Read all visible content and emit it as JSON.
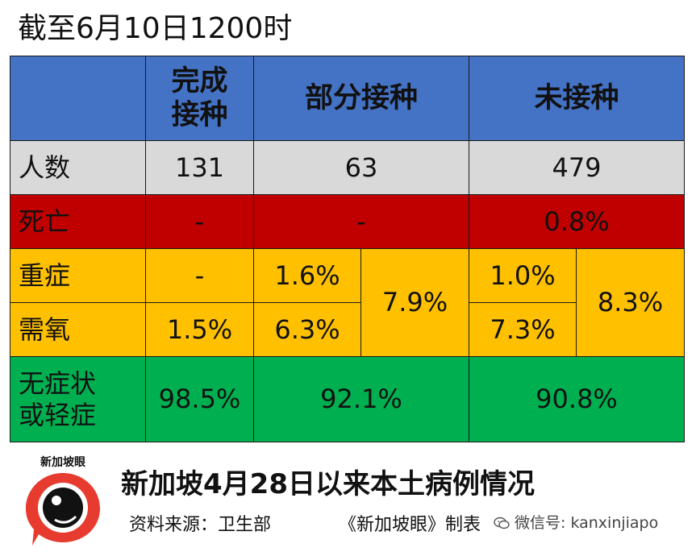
{
  "title": "截至6月10日1200时",
  "table": {
    "headers": [
      "",
      "完成\n接种",
      "部分接种",
      "未接种"
    ],
    "rows": {
      "count": {
        "label": "人数",
        "full": "131",
        "partial": "63",
        "none": "479"
      },
      "death": {
        "label": "死亡",
        "full": "-",
        "partial": "-",
        "none": "0.8%"
      },
      "severe": {
        "label": "重症",
        "full": "-",
        "partial": "1.6%",
        "none": "1.0%"
      },
      "oxygen": {
        "label": "需氧",
        "full": "1.5%",
        "partial": "6.3%",
        "none": "7.3%"
      },
      "merged": {
        "partial": "7.9%",
        "none": "8.3%"
      },
      "mild": {
        "label": "无症状\n或轻症",
        "full": "98.5%",
        "partial": "92.1%",
        "none": "90.8%"
      }
    }
  },
  "colors": {
    "header": "#4472c4",
    "count": "#d9d9d9",
    "death": "#c00000",
    "severe": "#ffc000",
    "mild": "#00b050"
  },
  "footer": {
    "logo_text": "新加坡眼",
    "caption": "新加坡4月28日以来本土病例情况",
    "source": "资料来源：卫生部",
    "credit": "《新加坡眼》制表",
    "wechat": "微信号: kanxinjiapo"
  }
}
